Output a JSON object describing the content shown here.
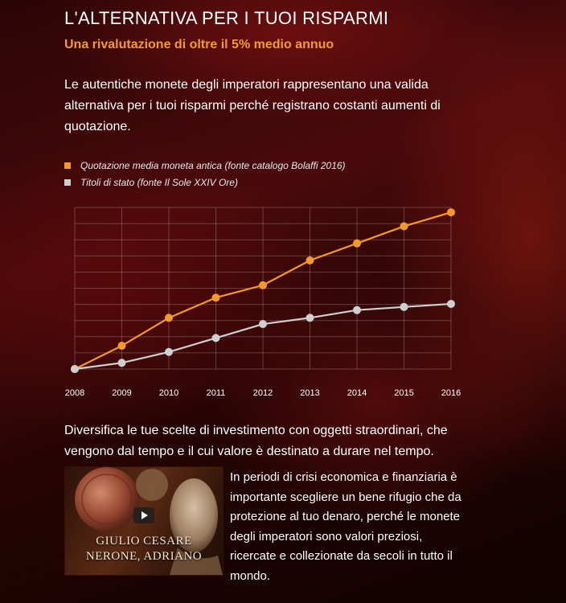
{
  "header": {
    "title": "L'ALTERNATIVA PER I TUOI RISPARMI",
    "subtitle": "Una rivalutazione di oltre il 5% medio annuo"
  },
  "intro_text": "Le autentiche monete degli imperatori rappresentano una valida alternativa per i tuoi risparmi perché registrano costanti aumenti di quotazione.",
  "colors": {
    "accent": "#f39a2b",
    "coin_series": "#f39a2b",
    "bonds_series": "#cfcfcf",
    "grid": "rgba(255,255,255,0.22)"
  },
  "chart_data": {
    "type": "line",
    "title": "",
    "xlabel": "",
    "ylabel": "",
    "x": [
      "2008",
      "2009",
      "2010",
      "2011",
      "2012",
      "2013",
      "2014",
      "2015",
      "2016"
    ],
    "ylim": [
      0,
      100
    ],
    "grid": true,
    "legend_position": "top-left",
    "series": [
      {
        "name": "Quotazione media moneta antica (fonte catalogo Bolaffi 2016)",
        "color": "#f39a2b",
        "values": [
          0,
          15,
          33,
          46,
          54,
          70,
          81,
          92,
          101
        ]
      },
      {
        "name": "Titoli di stato (fonte Il Sole XXIV Ore)",
        "color": "#cfcfcf",
        "values": [
          0,
          4,
          11,
          20,
          29,
          33,
          38,
          40,
          42
        ]
      }
    ]
  },
  "section2_text": "Diversifica le tue scelte di investimento con oggetti straordinari, che vengono dal tempo e il cui valore è destinato a durare nel tempo.",
  "video": {
    "play_icon": "play-icon",
    "caption_line1": "GIULIO CESARE",
    "caption_line2": "NERONE, ADRIANO"
  },
  "section3_text": "In periodi di crisi economica e finanziaria è importante scegliere un bene rifugio che da protezione al tuo denaro, perché le monete degli imperatori sono valori preziosi, ricercate e collezionate da secoli in tutto il mondo."
}
